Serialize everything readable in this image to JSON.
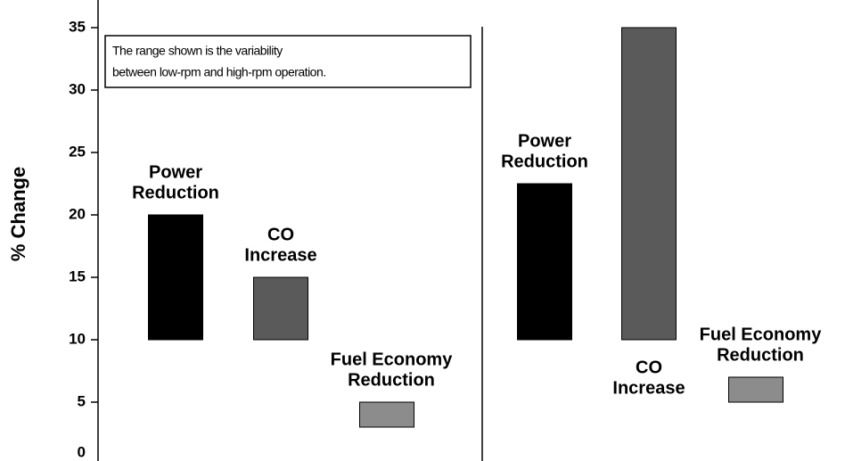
{
  "chart_data": {
    "type": "range_bar",
    "ylabel": "% Change",
    "ylim": [
      0,
      37
    ],
    "yticks": [
      0,
      5,
      10,
      15,
      20,
      25,
      30,
      35
    ],
    "annotation": [
      "The range shown is the variability",
      "between low-rpm and high-rpm operation."
    ],
    "colors": [
      "#000000",
      "#5a5a5a",
      "#8c8c8c"
    ],
    "panels": [
      {
        "labels": [
          [
            "Power",
            "Reduction"
          ],
          [
            "CO",
            "Increase"
          ],
          [
            "Fuel Economy",
            "Reduction"
          ]
        ],
        "low": [
          10,
          10,
          3
        ],
        "high": [
          20,
          15,
          5
        ]
      },
      {
        "labels": [
          [
            "Power",
            "Reduction"
          ],
          [
            "CO",
            "Increase"
          ],
          [
            "Fuel Economy",
            "Reduction"
          ]
        ],
        "low": [
          10,
          10,
          5
        ],
        "high": [
          22.5,
          35,
          7
        ]
      }
    ]
  }
}
